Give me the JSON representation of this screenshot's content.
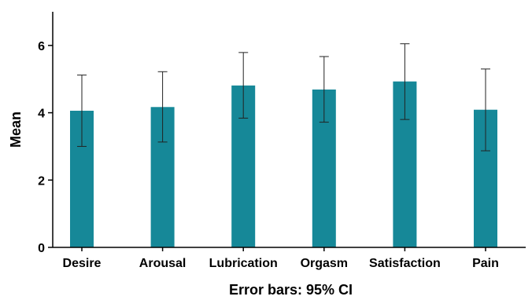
{
  "chart_data": {
    "type": "bar",
    "categories": [
      "Desire",
      "Arousal",
      "Lubrication",
      "Orgasm",
      "Satisfaction",
      "Pain"
    ],
    "values": [
      4.06,
      4.17,
      4.81,
      4.69,
      4.93,
      4.09
    ],
    "error_low": [
      3.0,
      3.13,
      3.84,
      3.72,
      3.8,
      2.87
    ],
    "error_high": [
      5.12,
      5.22,
      5.79,
      5.67,
      6.05,
      5.3
    ],
    "ylabel": "Mean",
    "xlabel": "Error bars: 95% CI",
    "ylim": [
      0,
      7
    ],
    "yticks": [
      0,
      2,
      4,
      6
    ],
    "bar_color": "#168898",
    "grid": false,
    "legend": "none"
  }
}
